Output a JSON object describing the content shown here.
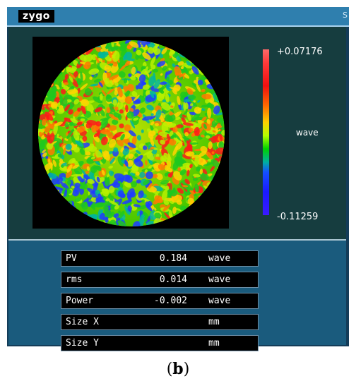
{
  "app": {
    "logo": "zygo",
    "title_right": "S"
  },
  "map": {
    "colorbar": {
      "max": "+0.07176",
      "unit": "wave",
      "min": "-0.11259"
    }
  },
  "readouts": [
    {
      "label": "PV",
      "value": "0.184",
      "unit": "wave"
    },
    {
      "label": "rms",
      "value": "0.014",
      "unit": "wave"
    },
    {
      "label": "Power",
      "value": "-0.002",
      "unit": "wave"
    },
    {
      "label": "Size X",
      "value": "",
      "unit": "mm"
    },
    {
      "label": "Size Y",
      "value": "",
      "unit": "mm"
    }
  ],
  "caption": {
    "open": "(",
    "letter": "b",
    "close": ")"
  },
  "colors": {
    "titlebar": "#2f7fae",
    "panel": "#163d3f",
    "readout_panel": "#1a5b7d"
  }
}
